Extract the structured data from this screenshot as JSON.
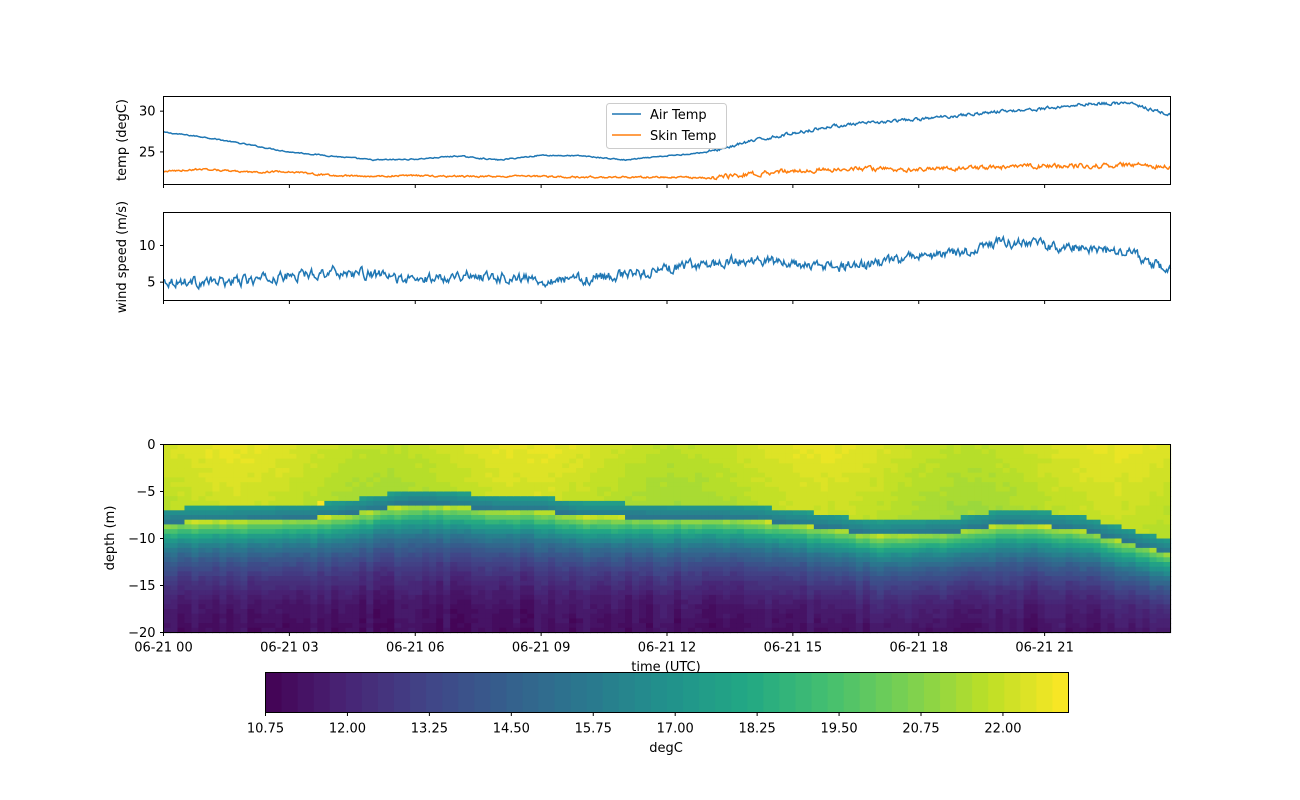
{
  "chart_data": [
    {
      "type": "line",
      "ylabel": "temp (degC)",
      "xlim": [
        0,
        24
      ],
      "ylim": [
        21.0,
        31.8
      ],
      "yticks": [
        25,
        30
      ],
      "x_tick_hours": [
        0,
        3,
        6,
        9,
        12,
        15,
        18,
        21
      ],
      "x_tick_labels_shown": false,
      "legend": {
        "placement": "top-center",
        "entries": [
          "Air Temp",
          "Skin Temp"
        ]
      },
      "series": [
        {
          "name": "Air Temp",
          "color": "#1f77b4",
          "x": [
            0,
            1,
            2,
            3,
            4,
            5,
            6,
            7,
            8,
            9,
            10,
            11,
            12,
            13,
            14,
            15,
            16,
            17,
            18,
            19,
            20,
            21,
            22,
            23,
            24
          ],
          "values": [
            27.4,
            26.8,
            25.9,
            25.0,
            24.5,
            24.0,
            24.1,
            24.5,
            24.0,
            24.6,
            24.5,
            24.0,
            24.5,
            25.0,
            26.3,
            27.3,
            28.2,
            28.6,
            29.0,
            29.5,
            30.0,
            30.3,
            30.9,
            31.0,
            29.5
          ],
          "noise": 0.2
        },
        {
          "name": "Skin Temp",
          "color": "#ff7f0e",
          "x": [
            0,
            1,
            2,
            3,
            4,
            5,
            6,
            7,
            8,
            9,
            10,
            11,
            12,
            13,
            14,
            15,
            16,
            17,
            18,
            19,
            20,
            21,
            22,
            23,
            24
          ],
          "values": [
            22.6,
            22.9,
            22.5,
            22.6,
            22.1,
            22.0,
            22.1,
            22.0,
            22.0,
            22.0,
            21.9,
            21.9,
            21.9,
            21.8,
            22.3,
            22.7,
            22.9,
            22.9,
            22.9,
            23.0,
            23.1,
            23.3,
            23.3,
            23.4,
            23.2
          ],
          "noise": 0.3
        }
      ]
    },
    {
      "type": "line",
      "ylabel": "wind speed (m/s)",
      "xlim": [
        0,
        24
      ],
      "ylim": [
        2.5,
        14.5
      ],
      "yticks": [
        5,
        10
      ],
      "x_tick_hours": [
        0,
        3,
        6,
        9,
        12,
        15,
        18,
        21
      ],
      "x_tick_labels_shown": false,
      "series": [
        {
          "name": "",
          "color": "#1f77b4",
          "x": [
            0,
            1,
            2,
            3,
            4,
            5,
            6,
            7,
            8,
            9,
            10,
            11,
            12,
            13,
            14,
            15,
            16,
            17,
            18,
            19,
            20,
            21,
            22,
            23,
            24
          ],
          "values": [
            5.2,
            5.0,
            5.2,
            5.8,
            6.5,
            6.0,
            5.2,
            6.0,
            5.8,
            5.3,
            5.5,
            6.0,
            6.8,
            7.5,
            8.0,
            7.5,
            7.0,
            7.5,
            8.5,
            9.0,
            10.5,
            10.0,
            9.5,
            9.0,
            6.5
          ],
          "noise": 1.2
        }
      ]
    },
    {
      "type": "heatmap",
      "xlabel": "time (UTC)",
      "ylabel": "depth (m)",
      "xlim": [
        0,
        24
      ],
      "ylim": [
        -20,
        0
      ],
      "yticks": [
        0,
        -5,
        -10,
        -15,
        -20
      ],
      "x_tick_hours": [
        0,
        3,
        6,
        9,
        12,
        15,
        18,
        21
      ],
      "x_tick_labels": [
        "06-21 00",
        "06-21 03",
        "06-21 06",
        "06-21 09",
        "06-21 12",
        "06-21 15",
        "06-21 18",
        "06-21 21"
      ],
      "colormap": "viridis",
      "colorbar": {
        "label": "degC",
        "range": [
          10.75,
          23.0
        ],
        "ticks": [
          10.75,
          12.0,
          13.25,
          14.5,
          15.75,
          17.0,
          18.25,
          19.5,
          20.75,
          22.0
        ],
        "tick_labels": [
          "10.75",
          "12.00",
          "13.25",
          "14.50",
          "15.75",
          "17.00",
          "18.25",
          "19.50",
          "20.75",
          "22.00"
        ],
        "levels": 50
      },
      "thermocline_depth": {
        "hours": [
          0,
          2,
          4,
          5,
          6,
          8,
          9,
          10,
          12,
          14,
          15,
          16,
          17,
          18,
          19,
          20,
          21,
          22,
          23,
          24
        ],
        "depth_m": [
          -6.8,
          -6.6,
          -6.2,
          -5.5,
          -4.8,
          -5.5,
          -5.5,
          -6.2,
          -6.3,
          -6.5,
          -7.0,
          -7.5,
          -8.2,
          -8.0,
          -7.8,
          -7.0,
          -7.2,
          -7.8,
          -9.0,
          -10.2
        ]
      },
      "surface_temp_degC": 22.2,
      "deep_temp_degC": 11.0
    }
  ]
}
